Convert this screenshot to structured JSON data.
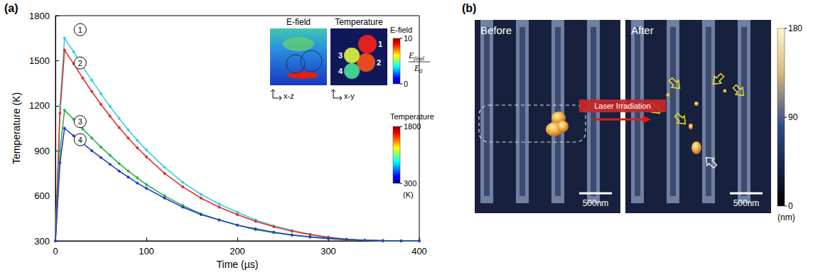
{
  "chart_data": {
    "type": "line",
    "x_label": "Time (µs)",
    "y_label": "Temperature (K)",
    "x": [
      0,
      5,
      10,
      20,
      30,
      40,
      50,
      60,
      70,
      80,
      90,
      100,
      120,
      140,
      160,
      180,
      200,
      220,
      240,
      260,
      280,
      300,
      320,
      340,
      360,
      380,
      400
    ],
    "series": [
      {
        "name": "1",
        "color": "#38d0e0",
        "values": [
          300,
          1200,
          1650,
          1560,
          1460,
          1370,
          1280,
          1195,
          1115,
          1040,
          970,
          905,
          790,
          690,
          610,
          545,
          490,
          440,
          400,
          370,
          345,
          325,
          312,
          305,
          302,
          300,
          300
        ]
      },
      {
        "name": "2",
        "color": "#e03030",
        "values": [
          300,
          1150,
          1570,
          1480,
          1385,
          1295,
          1210,
          1130,
          1055,
          985,
          920,
          860,
          750,
          660,
          585,
          525,
          475,
          430,
          395,
          365,
          342,
          324,
          311,
          304,
          301,
          300,
          300
        ]
      },
      {
        "name": "3",
        "color": "#30b050",
        "values": [
          300,
          900,
          1170,
          1110,
          1045,
          985,
          925,
          870,
          815,
          765,
          720,
          675,
          600,
          535,
          480,
          440,
          405,
          375,
          355,
          338,
          325,
          315,
          308,
          303,
          301,
          300,
          300
        ]
      },
      {
        "name": "4",
        "color": "#2040c8",
        "values": [
          300,
          820,
          1050,
          1000,
          950,
          900,
          855,
          810,
          765,
          725,
          685,
          650,
          585,
          525,
          475,
          440,
          405,
          380,
          358,
          340,
          327,
          317,
          309,
          304,
          301,
          300,
          300
        ]
      }
    ],
    "xlim": [
      0,
      400
    ],
    "xticks": [
      0,
      100,
      200,
      300,
      400
    ],
    "ylim": [
      300,
      1800
    ],
    "yticks": [
      300,
      600,
      900,
      1200,
      1500,
      1800
    ],
    "grid": false,
    "marker": "circle",
    "line_style": "solid"
  },
  "panel_a": {
    "label": "(a)",
    "insets": [
      {
        "title": "E-field",
        "axes": "x-z"
      },
      {
        "title": "Temperature",
        "axes": "x-y",
        "sphere_labels": [
          "1",
          "2",
          "3",
          "4"
        ]
      }
    ],
    "colorbars": [
      {
        "title": "E-field",
        "unit": {
          "numerator": "E",
          "numerator_sub": "final",
          "denominator": "E",
          "denominator_sub": "0"
        },
        "range": [
          0,
          10
        ],
        "ticks": [
          0,
          10
        ]
      },
      {
        "title": "Temperature",
        "unit": "(K)",
        "range": [
          300,
          1800
        ],
        "ticks": [
          300,
          1800
        ]
      }
    ]
  },
  "panel_b": {
    "label": "(b)",
    "images": [
      {
        "title": "Before",
        "scale_bar": "500nm"
      },
      {
        "title": "After",
        "scale_bar": "500nm"
      }
    ],
    "arrow_label": "Laser Irradiation",
    "colorbar": {
      "unit": "(nm)",
      "range": [
        0,
        180
      ],
      "ticks": [
        0,
        90,
        180
      ]
    }
  }
}
